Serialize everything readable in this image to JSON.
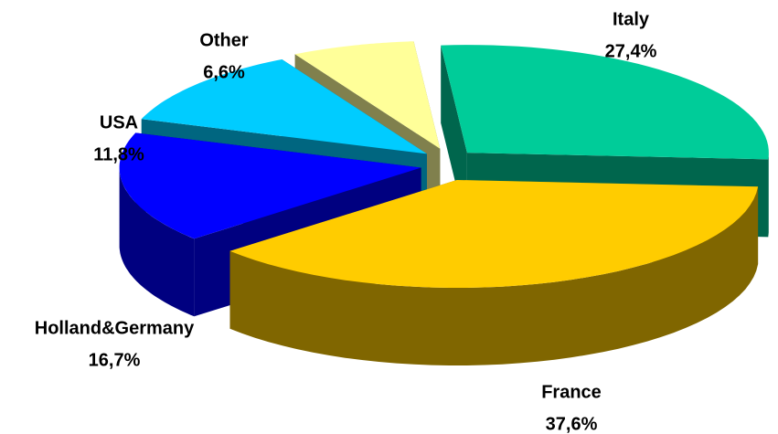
{
  "chart_data": {
    "type": "pie3d",
    "categories": [
      "Italy",
      "France",
      "Holland&Germany",
      "USA",
      "Other"
    ],
    "values": [
      27.4,
      37.6,
      16.7,
      11.8,
      6.6
    ],
    "value_labels": [
      "27,4%",
      "37,6%",
      "16,7%",
      "11,8%",
      "6,6%"
    ],
    "colors": [
      "#00cc99",
      "#ffcc00",
      "#0000ff",
      "#00ccff",
      "#ffff99"
    ]
  }
}
